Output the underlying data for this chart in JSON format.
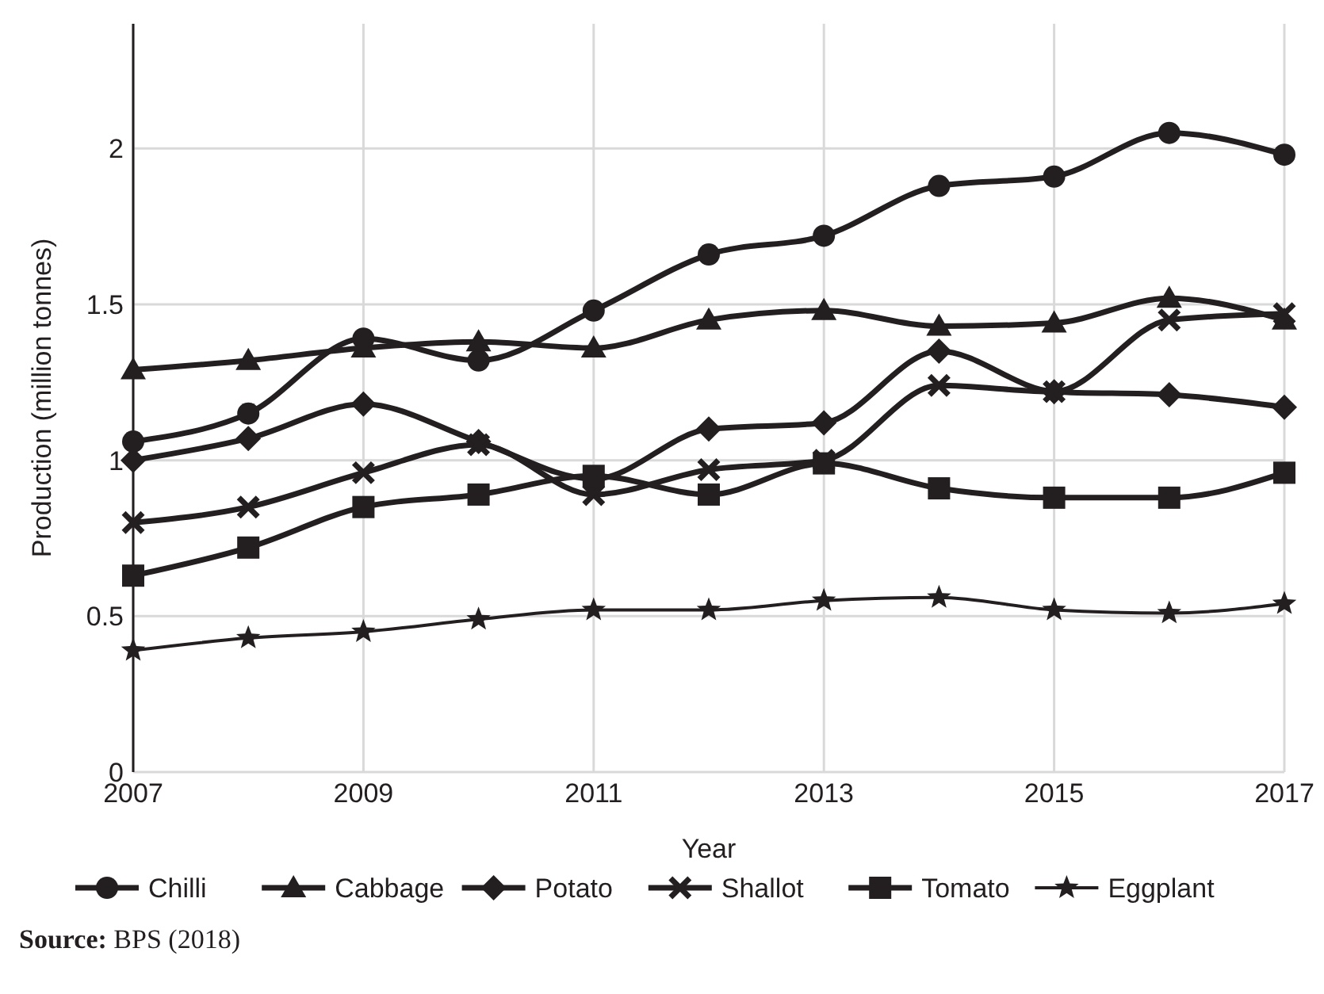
{
  "chart_data": {
    "type": "line",
    "xlabel": "Year",
    "ylabel": "Production (million tonnes)",
    "x": [
      2007,
      2008,
      2009,
      2010,
      2011,
      2012,
      2013,
      2014,
      2015,
      2016,
      2017
    ],
    "xlim": [
      2007,
      2017
    ],
    "xticks": [
      2007,
      2009,
      2011,
      2013,
      2015,
      2017
    ],
    "ylim": [
      0,
      2.4
    ],
    "yticks": [
      0,
      0.5,
      1,
      1.5,
      2
    ],
    "grid": true,
    "legend": "bottom",
    "line_style": "solid",
    "series": [
      {
        "name": "Chilli",
        "color": "#231f20",
        "marker": "circle",
        "values": [
          1.06,
          1.15,
          1.39,
          1.32,
          1.48,
          1.66,
          1.72,
          1.88,
          1.91,
          2.05,
          1.98
        ]
      },
      {
        "name": "Cabbage",
        "color": "#231f20",
        "marker": "triangle",
        "values": [
          1.29,
          1.32,
          1.36,
          1.38,
          1.36,
          1.45,
          1.48,
          1.43,
          1.44,
          1.52,
          1.45
        ]
      },
      {
        "name": "Potato",
        "color": "#231f20",
        "marker": "diamond",
        "values": [
          1.0,
          1.07,
          1.18,
          1.06,
          0.94,
          1.1,
          1.12,
          1.35,
          1.22,
          1.21,
          1.17
        ]
      },
      {
        "name": "Shallot",
        "color": "#231f20",
        "marker": "cross",
        "values": [
          0.8,
          0.85,
          0.96,
          1.05,
          0.89,
          0.97,
          1.0,
          1.24,
          1.22,
          1.45,
          1.47
        ]
      },
      {
        "name": "Tomato",
        "color": "#231f20",
        "marker": "square",
        "values": [
          0.63,
          0.72,
          0.85,
          0.89,
          0.95,
          0.89,
          0.99,
          0.91,
          0.88,
          0.88,
          0.96
        ]
      },
      {
        "name": "Eggplant",
        "color": "#231f20",
        "marker": "star",
        "values": [
          0.39,
          0.43,
          0.45,
          0.49,
          0.52,
          0.52,
          0.55,
          0.56,
          0.52,
          0.51,
          0.54
        ]
      }
    ],
    "annotations": [
      "Source: BPS (2018)"
    ]
  }
}
